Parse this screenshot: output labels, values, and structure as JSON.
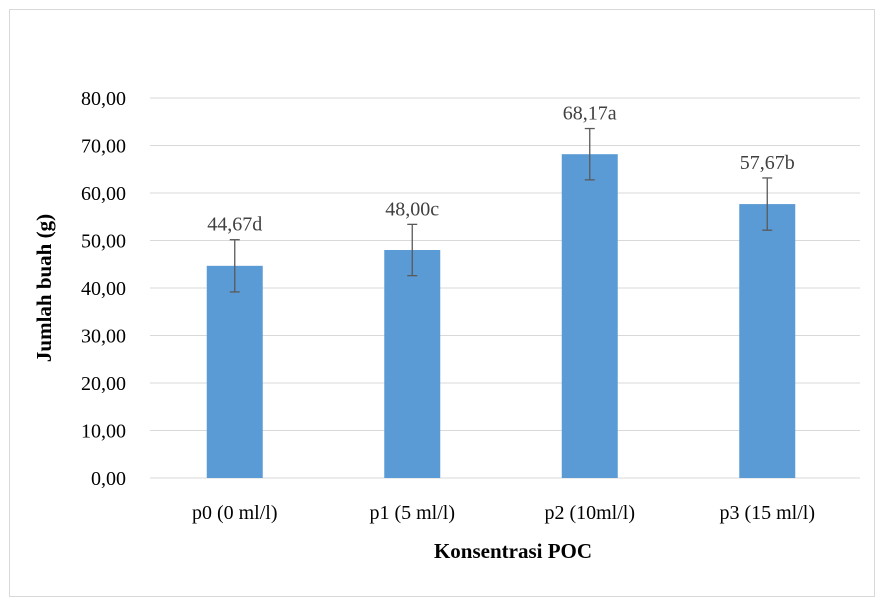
{
  "chart_data": {
    "type": "bar",
    "title": "",
    "xlabel": "Konsentrasi POC",
    "ylabel": "Jumlah buah (g)",
    "categories": [
      "p0 (0 ml/l)",
      "p1 (5 ml/l)",
      "p2 (10ml/l)",
      "p3 (15 ml/l)"
    ],
    "values": [
      44.67,
      48.0,
      68.17,
      57.67
    ],
    "error": [
      5.5,
      5.4,
      5.4,
      5.5
    ],
    "data_labels": [
      "44,67d",
      "48,00c",
      "68,17a",
      "57,67b"
    ],
    "ylim": [
      0,
      80
    ],
    "yticks": [
      0,
      10,
      20,
      30,
      40,
      50,
      60,
      70,
      80
    ],
    "ytick_labels": [
      "0,00",
      "10,00",
      "20,00",
      "30,00",
      "40,00",
      "50,00",
      "60,00",
      "70,00",
      "80,00"
    ],
    "grid": true,
    "legend": "none",
    "colors": {
      "bar": "#5b9bd5",
      "grid": "#d9d9d9",
      "error_bar": "#595959",
      "data_label": "#404040"
    }
  }
}
